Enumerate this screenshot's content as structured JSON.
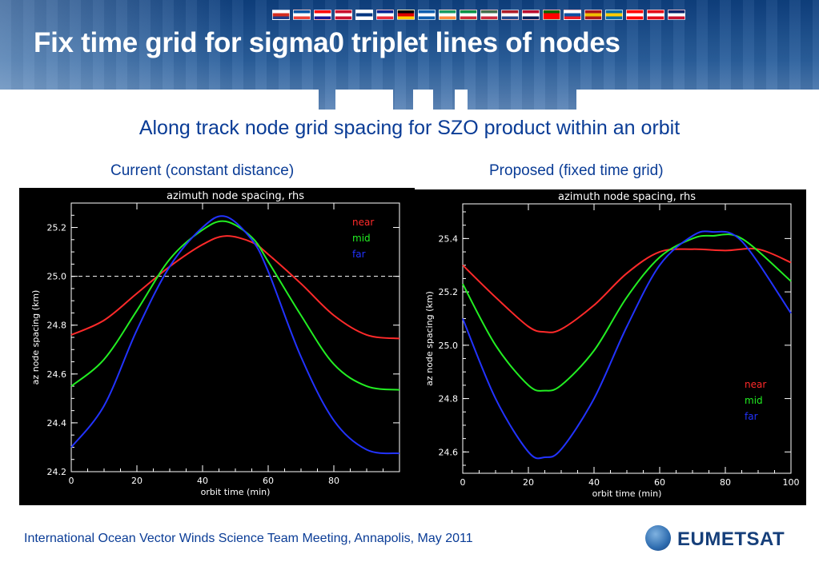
{
  "header": {
    "title": "Fix time grid for sigma0 triplet lines of nodes",
    "flags": [
      [
        "#ffffff",
        "#d52b1e",
        "#1f3c88"
      ],
      [
        "#0055a4",
        "#ffffff",
        "#ef4135"
      ],
      [
        "#ff0000",
        "#ffffff",
        "#171796"
      ],
      [
        "#c8102e",
        "#ffffff",
        "#c8102e"
      ],
      [
        "#ffffff",
        "#003580",
        "#ffffff"
      ],
      [
        "#002395",
        "#ffffff",
        "#ed2939"
      ],
      [
        "#000000",
        "#dd0000",
        "#ffce00"
      ],
      [
        "#0d5eaf",
        "#ffffff",
        "#0d5eaf"
      ],
      [
        "#169b62",
        "#ffffff",
        "#ff883e"
      ],
      [
        "#009246",
        "#ffffff",
        "#ce2b37"
      ],
      [
        "#436f4d",
        "#ffffff",
        "#cd2a3e"
      ],
      [
        "#ae1c28",
        "#ffffff",
        "#21468b"
      ],
      [
        "#ba0c2f",
        "#ffffff",
        "#00205b"
      ],
      [
        "#006600",
        "#ff0000",
        "#ff0000"
      ],
      [
        "#ffffff",
        "#0b4ea2",
        "#ee1c25"
      ],
      [
        "#aa151b",
        "#f1bf00",
        "#aa151b"
      ],
      [
        "#006aa7",
        "#fecc00",
        "#006aa7"
      ],
      [
        "#ff0000",
        "#ffffff",
        "#ff0000"
      ],
      [
        "#e30a17",
        "#ffffff",
        "#e30a17"
      ],
      [
        "#012169",
        "#ffffff",
        "#c8102e"
      ]
    ]
  },
  "subtitle": "Along track node grid spacing for SZO product within an orbit",
  "captions": {
    "left": "Current (constant distance)",
    "right": "Proposed (fixed time grid)"
  },
  "footer": {
    "text": "International Ocean Vector Winds Science Team Meeting, Annapolis, May 2011",
    "logo_text": "EUMETSAT"
  },
  "chart_data": [
    {
      "type": "line",
      "title": "azimuth node spacing, rhs",
      "xlabel": "orbit time (min)",
      "ylabel": "az node spacing (km)",
      "xlim": [
        0,
        100
      ],
      "ylim": [
        24.2,
        25.3
      ],
      "xticks": [
        0,
        20,
        40,
        60,
        80
      ],
      "yticks": [
        24.2,
        24.4,
        24.6,
        24.8,
        25.0,
        25.2
      ],
      "ytick_labels": [
        "24.2",
        "24.4",
        "24.6",
        "24.8",
        "25.0",
        "25.2"
      ],
      "reference_line": 25.0,
      "legend_position": "top-right",
      "series": [
        {
          "name": "near",
          "color": "#ff2a2a",
          "x": [
            0,
            10,
            20,
            30,
            40,
            47,
            55,
            60,
            70,
            80,
            90,
            100
          ],
          "y": [
            24.76,
            24.82,
            24.93,
            25.04,
            25.13,
            25.165,
            25.14,
            25.09,
            24.97,
            24.84,
            24.76,
            24.745
          ]
        },
        {
          "name": "mid",
          "color": "#22ee22",
          "x": [
            0,
            10,
            20,
            30,
            40,
            47,
            55,
            60,
            70,
            80,
            90,
            100
          ],
          "y": [
            24.55,
            24.66,
            24.86,
            25.07,
            25.19,
            25.225,
            25.16,
            25.06,
            24.84,
            24.64,
            24.55,
            24.535
          ]
        },
        {
          "name": "far",
          "color": "#2233ff",
          "x": [
            0,
            10,
            20,
            30,
            40,
            47,
            55,
            60,
            70,
            80,
            90,
            100
          ],
          "y": [
            24.3,
            24.47,
            24.78,
            25.04,
            25.2,
            25.245,
            25.15,
            25.02,
            24.67,
            24.41,
            24.29,
            24.275
          ]
        }
      ]
    },
    {
      "type": "line",
      "title": "azimuth node spacing, rhs",
      "xlabel": "orbit time (min)",
      "ylabel": "az node spacing (km)",
      "xlim": [
        0,
        100
      ],
      "ylim": [
        24.52,
        25.53
      ],
      "xticks": [
        0,
        20,
        40,
        60,
        80,
        100
      ],
      "yticks": [
        24.6,
        24.8,
        25.0,
        25.2,
        25.4
      ],
      "ytick_labels": [
        "24.6",
        "24.8",
        "25.0",
        "25.2",
        "25.4"
      ],
      "legend_position": "bottom-right",
      "series": [
        {
          "name": "near",
          "color": "#ff2a2a",
          "x": [
            0,
            10,
            20,
            25,
            30,
            40,
            50,
            60,
            70,
            80,
            90,
            100
          ],
          "y": [
            25.3,
            25.18,
            25.07,
            25.05,
            25.06,
            25.15,
            25.27,
            25.35,
            25.36,
            25.355,
            25.36,
            25.31
          ]
        },
        {
          "name": "mid",
          "color": "#22ee22",
          "x": [
            0,
            10,
            20,
            25,
            30,
            40,
            50,
            60,
            70,
            76,
            85,
            100
          ],
          "y": [
            25.23,
            25.0,
            24.85,
            24.83,
            24.85,
            24.98,
            25.18,
            25.33,
            25.4,
            25.41,
            25.4,
            25.24
          ]
        },
        {
          "name": "far",
          "color": "#2233ff",
          "x": [
            0,
            10,
            20,
            25,
            30,
            40,
            50,
            60,
            70,
            76,
            85,
            100
          ],
          "y": [
            25.1,
            24.8,
            24.6,
            24.58,
            24.61,
            24.8,
            25.07,
            25.3,
            25.41,
            25.425,
            25.39,
            25.12
          ]
        }
      ]
    }
  ]
}
